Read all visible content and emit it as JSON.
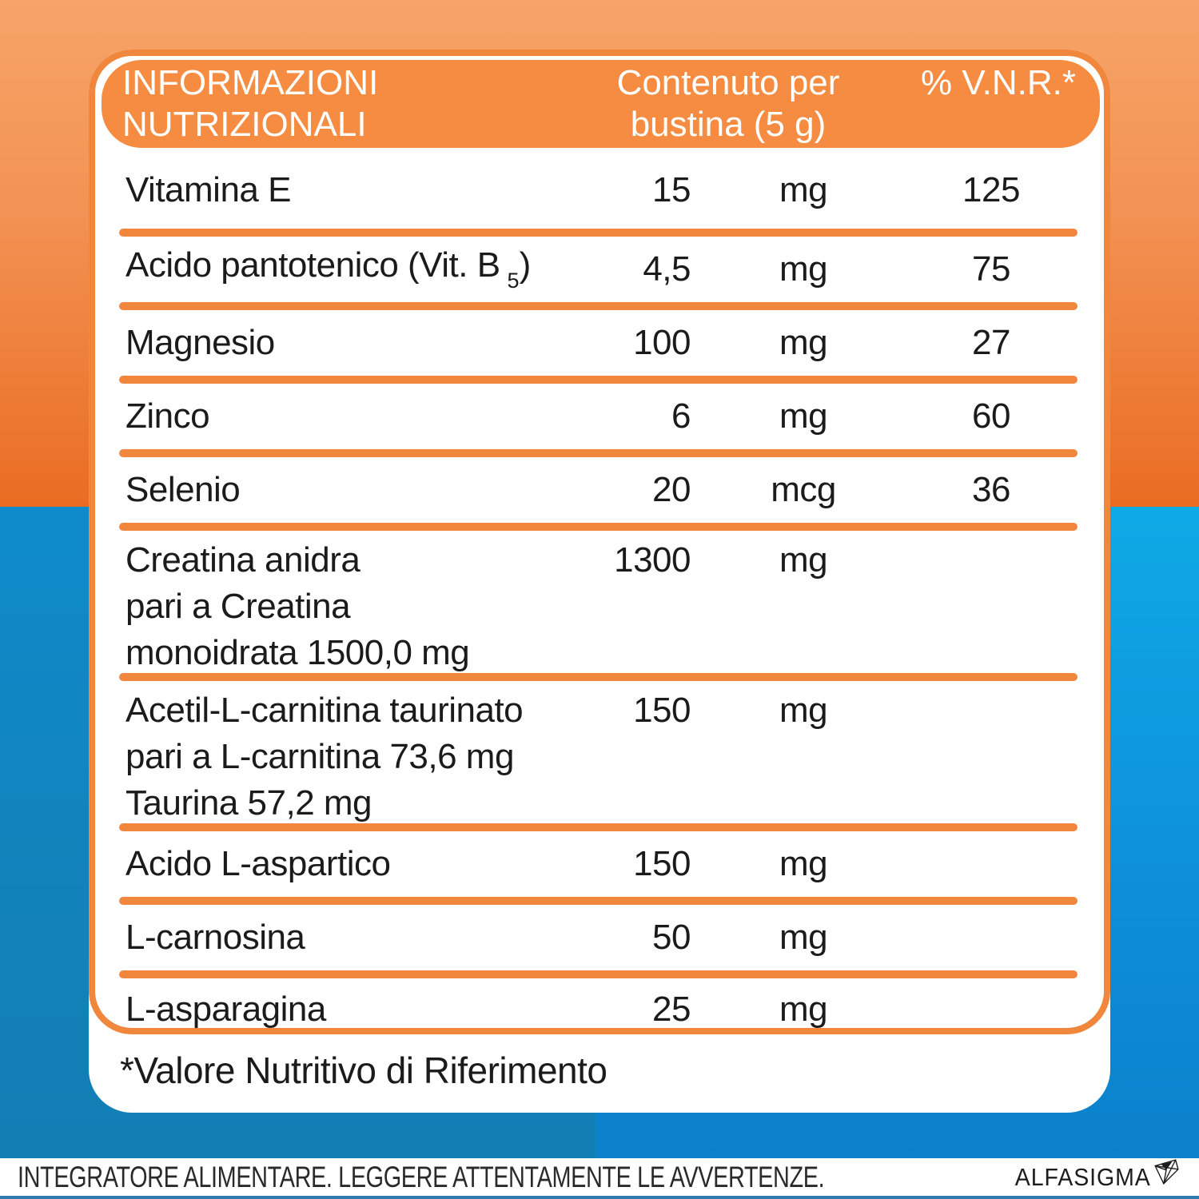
{
  "colors": {
    "orange_band": "#F58C42",
    "orange_border": "#F0873D",
    "bg_orange_top": "#F7A468",
    "bg_orange_bottom": "#EA6C22",
    "bg_blue_left": "#1182B9",
    "bg_blue_right": "#0D8FD8",
    "bottom_strip_blue": "#2F7BB0",
    "text_dark": "#1B1B1B",
    "text_white": "#FFFFFF"
  },
  "table": {
    "header": {
      "title_lines": [
        "INFORMAZIONI",
        "NUTRIZIONALI"
      ],
      "content_lines": [
        "Contenuto per",
        "bustina (5 g)"
      ],
      "vnr": "% V.N.R.*"
    },
    "rows": [
      {
        "name": "Vitamina E",
        "value": "15",
        "unit": "mg",
        "vnr": "125"
      },
      {
        "name": "Acido pantotenico (Vit. B",
        "sub": "5",
        "suffix": ")",
        "value": "4,5",
        "unit": "mg",
        "vnr": "75"
      },
      {
        "name": "Magnesio",
        "value": "100",
        "unit": "mg",
        "vnr": "27"
      },
      {
        "name": "Zinco",
        "value": "6",
        "unit": "mg",
        "vnr": "60"
      },
      {
        "name": "Selenio",
        "value": "20",
        "unit": "mcg",
        "vnr": "36"
      },
      {
        "name_lines": [
          "Creatina anidra",
          "pari a Creatina",
          "monoidrata 1500,0 mg"
        ],
        "value": "1300",
        "unit": "mg",
        "vnr": ""
      },
      {
        "name_lines": [
          "Acetil-L-carnitina taurinato",
          "pari a L-carnitina 73,6 mg",
          "Taurina 57,2 mg"
        ],
        "value": "150",
        "unit": "mg",
        "vnr": ""
      },
      {
        "name": "Acido L-aspartico",
        "value": "150",
        "unit": "mg",
        "vnr": ""
      },
      {
        "name": "L-carnosina",
        "value": "50",
        "unit": "mg",
        "vnr": ""
      },
      {
        "name": "L-asparagina",
        "value": "25",
        "unit": "mg",
        "vnr": ""
      }
    ],
    "footnote": "*Valore Nutritivo di Riferimento"
  },
  "footer": {
    "legal": "INTEGRATORE ALIMENTARE. LEGGERE ATTENTAMENTE LE AVVERTENZE.",
    "brand": "ALFASIGMA"
  }
}
